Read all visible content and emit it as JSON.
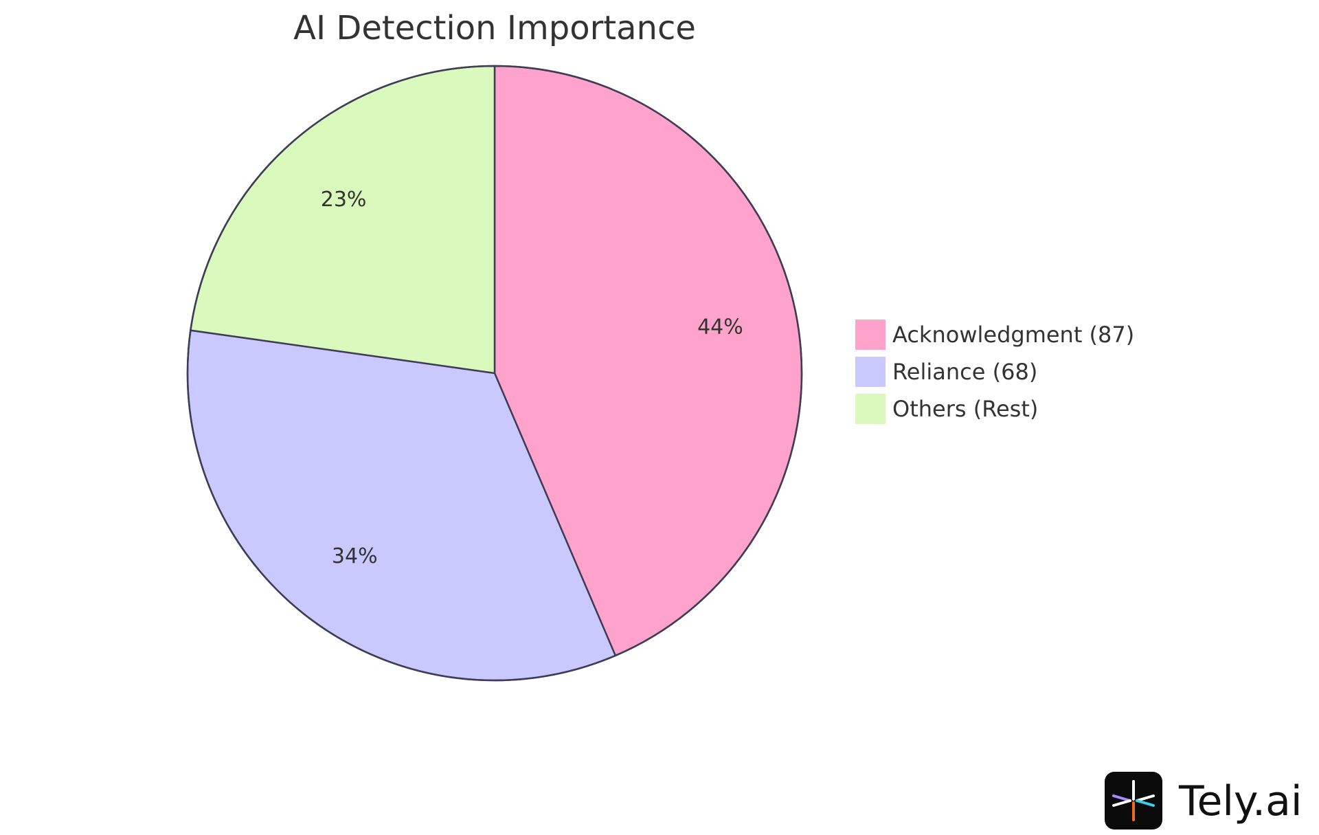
{
  "chart_data": {
    "type": "pie",
    "title": "AI Detection Importance",
    "slices": [
      {
        "name": "Acknowledgment (87)",
        "percent": 44,
        "percent_label": "44%",
        "color": "#ffa3cd"
      },
      {
        "name": "Reliance (68)",
        "percent": 34,
        "percent_label": "34%",
        "color": "#c9c9ff"
      },
      {
        "name": "Others (Rest)",
        "percent": 23,
        "percent_label": "23%",
        "color": "#daf9bd"
      }
    ],
    "legend_position": "right",
    "outline_color": "#3f3d56"
  },
  "branding": {
    "logo_text": "Tely.ai",
    "logo_icon": "tely-logo-icon"
  }
}
